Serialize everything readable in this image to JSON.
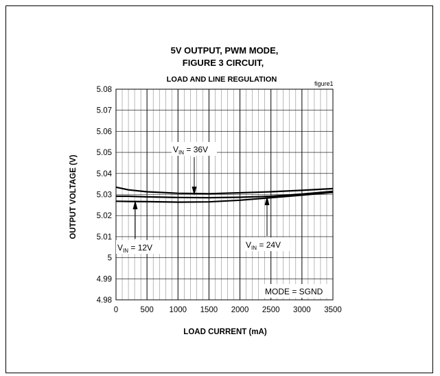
{
  "chart_data": {
    "type": "line",
    "title": [
      "5V OUTPUT, PWM MODE,",
      "FIGURE 3 CIRCUIT,"
    ],
    "subtitle": "LOAD AND LINE REGULATION",
    "figure_tag": "figure1",
    "xlabel": "LOAD CURRENT (mA)",
    "ylabel": "OUTPUT  VOLTAGE  (V)",
    "xlim": [
      0,
      3500
    ],
    "ylim": [
      4.98,
      5.08
    ],
    "x_ticks": [
      0,
      500,
      1000,
      1500,
      2000,
      2500,
      3000,
      3500
    ],
    "x_tick_labels": [
      "0",
      "500",
      "1000",
      "1500",
      "2000",
      "2500",
      "3000",
      "3500"
    ],
    "y_ticks": [
      4.98,
      4.99,
      5,
      5.01,
      5.02,
      5.03,
      5.04,
      5.05,
      5.06,
      5.07,
      5.08
    ],
    "y_tick_labels": [
      "4.98",
      "4.99",
      "5",
      "5.01",
      "5.02",
      "5.03",
      "5.04",
      "5.05",
      "5.06",
      "5.07",
      "5.08"
    ],
    "grid": true,
    "series": [
      {
        "name": "VIN = 36V",
        "x": [
          0,
          200,
          500,
          1000,
          1500,
          2000,
          2500,
          3000,
          3500
        ],
        "y": [
          5.0335,
          5.0322,
          5.0313,
          5.0306,
          5.0304,
          5.0308,
          5.0313,
          5.032,
          5.0328
        ]
      },
      {
        "name": "VIN = 24V",
        "x": [
          0,
          200,
          500,
          1000,
          1500,
          2000,
          2500,
          3000,
          3500
        ],
        "y": [
          5.0292,
          5.0292,
          5.0289,
          5.0286,
          5.0285,
          5.0287,
          5.0292,
          5.0302,
          5.0315
        ]
      },
      {
        "name": "VIN = 12V",
        "x": [
          0,
          200,
          500,
          1000,
          1500,
          2000,
          2500,
          3000,
          3500
        ],
        "y": [
          5.0268,
          5.0267,
          5.0266,
          5.0264,
          5.0265,
          5.0273,
          5.0285,
          5.0297,
          5.031
        ]
      }
    ],
    "annotations": {
      "v36": {
        "prefix": "V",
        "sub": "IN",
        "suffix": " = 36V"
      },
      "v12": {
        "prefix": "V",
        "sub": "IN",
        "suffix": " = 12V"
      },
      "v24": {
        "prefix": "V",
        "sub": "IN",
        "suffix": " = 24V"
      },
      "mode": "MODE = SGND"
    }
  }
}
